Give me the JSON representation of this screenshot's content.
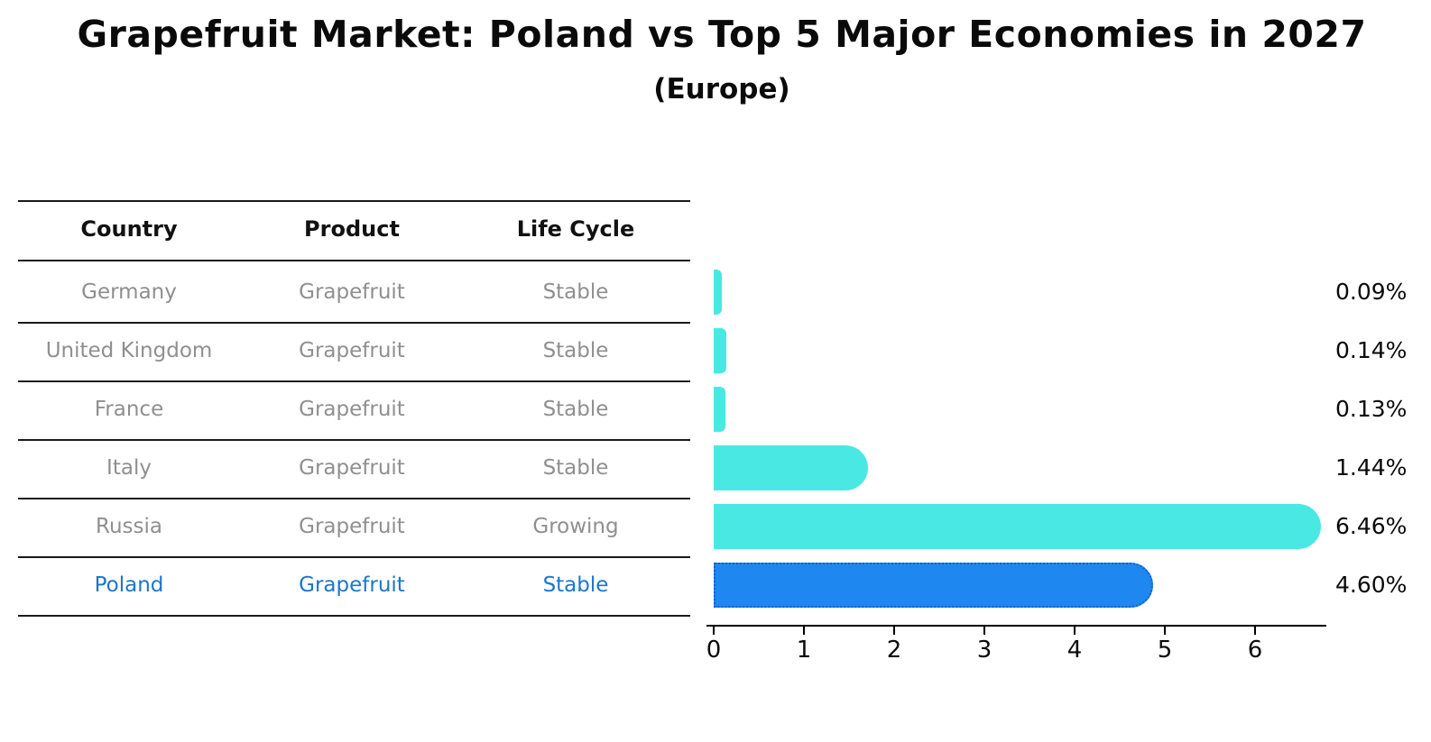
{
  "title": "Grapefruit Market: Poland vs Top 5 Major Economies in 2027",
  "subtitle": "(Europe)",
  "table": {
    "columns": [
      "Country",
      "Product",
      "Life Cycle"
    ],
    "rows": [
      {
        "country": "Germany",
        "product": "Grapefruit",
        "life_cycle": "Stable",
        "highlighted": false
      },
      {
        "country": "United Kingdom",
        "product": "Grapefruit",
        "life_cycle": "Stable",
        "highlighted": false
      },
      {
        "country": "France",
        "product": "Grapefruit",
        "life_cycle": "Stable",
        "highlighted": false
      },
      {
        "country": "Italy",
        "product": "Grapefruit",
        "life_cycle": "Stable",
        "highlighted": false
      },
      {
        "country": "Russia",
        "product": "Grapefruit",
        "life_cycle": "Growing",
        "highlighted": false
      },
      {
        "country": "Poland",
        "product": "Grapefruit",
        "life_cycle": "Stable",
        "highlighted": true
      }
    ]
  },
  "chart_data": {
    "type": "bar",
    "orientation": "horizontal",
    "title": "Grapefruit Market: Poland vs Top 5 Major Economies in 2027",
    "subtitle": "(Europe)",
    "categories": [
      "Germany",
      "United Kingdom",
      "France",
      "Italy",
      "Russia",
      "Poland"
    ],
    "values": [
      0.09,
      0.14,
      0.13,
      1.44,
      6.46,
      4.6
    ],
    "value_labels": [
      "0.09%",
      "0.14%",
      "0.13%",
      "1.44%",
      "6.46%",
      "4.60%"
    ],
    "xlabel": "",
    "ylabel": "",
    "xlim": [
      0,
      6.8
    ],
    "x_ticks": [
      0,
      1,
      2,
      3,
      4,
      5,
      6
    ],
    "grid": false,
    "legend": false,
    "highlight_index": 5
  },
  "colors": {
    "bar_default": "#4AE8E3",
    "bar_highlight": "#1E87F0",
    "bar_highlight_border": "#1261CE",
    "table_text": "#8f8f8f",
    "table_text_highlight": "#1B76CC",
    "line": "#1a1a1a",
    "text": "#0a0a0a"
  }
}
